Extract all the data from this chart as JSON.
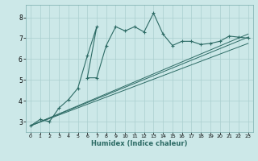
{
  "xlabel": "Humidex (Indice chaleur)",
  "background_color": "#cce8e8",
  "line_color": "#2d6b65",
  "grid_color": "#aacfcf",
  "xlim": [
    -0.5,
    23.5
  ],
  "ylim": [
    2.5,
    8.6
  ],
  "xticks": [
    0,
    1,
    2,
    3,
    4,
    5,
    6,
    7,
    8,
    9,
    10,
    11,
    12,
    13,
    14,
    15,
    16,
    17,
    18,
    19,
    20,
    21,
    22,
    23
  ],
  "yticks": [
    3,
    4,
    5,
    6,
    7,
    8
  ],
  "jagged_x": [
    0,
    1,
    2,
    3,
    4,
    5,
    6,
    7,
    6,
    7,
    8,
    9,
    10,
    11,
    12,
    13,
    14,
    15,
    16,
    17,
    18,
    19,
    20,
    21,
    22,
    23
  ],
  "jagged_y": [
    2.8,
    3.1,
    3.0,
    3.65,
    4.05,
    4.6,
    6.15,
    7.55,
    5.1,
    5.1,
    6.65,
    7.55,
    7.35,
    7.55,
    7.3,
    8.2,
    7.2,
    6.65,
    6.85,
    6.85,
    6.7,
    6.75,
    6.85,
    7.1,
    7.05,
    7.0
  ],
  "line1_x": [
    0,
    23
  ],
  "line1_y": [
    2.8,
    7.05
  ],
  "line2_x": [
    0,
    23
  ],
  "line2_y": [
    2.8,
    6.75
  ],
  "line3_x": [
    0,
    23
  ],
  "line3_y": [
    2.8,
    7.2
  ]
}
